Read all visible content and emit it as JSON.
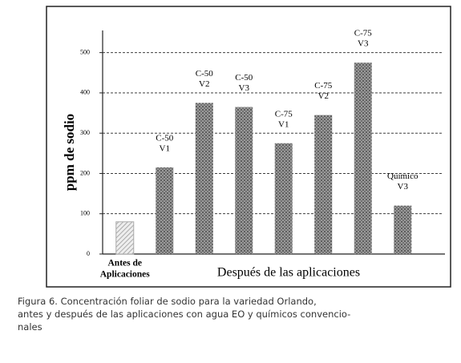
{
  "chart_data": {
    "type": "bar",
    "y_label": "ppm de sodio",
    "x_label": "Después de las aplicaciones",
    "categories": [
      [
        "Antes de",
        "Aplicaciones"
      ],
      [
        "C-50",
        "V1"
      ],
      [
        "C-50",
        "V2"
      ],
      [
        "C-50",
        "V3"
      ],
      [
        "C-75",
        "V1"
      ],
      [
        "C-75",
        "V2"
      ],
      [
        "C-75",
        "V3"
      ],
      [
        "Químico",
        "V3"
      ]
    ],
    "values": [
      80,
      215,
      375,
      365,
      275,
      345,
      475,
      120
    ],
    "bar_styles": [
      "hatched",
      "dotted",
      "dotted",
      "dotted",
      "dotted",
      "dotted",
      "dotted",
      "dotted"
    ],
    "ylim": [
      0,
      555
    ],
    "yticks": [
      0,
      100,
      200,
      300,
      400,
      500
    ],
    "grid": true
  },
  "caption": [
    "Figura 6.  Concentración foliar de sodio para la variedad Orlando,",
    "antes y después de las aplicaciones con agua EO y químicos convencio-",
    "nales"
  ]
}
